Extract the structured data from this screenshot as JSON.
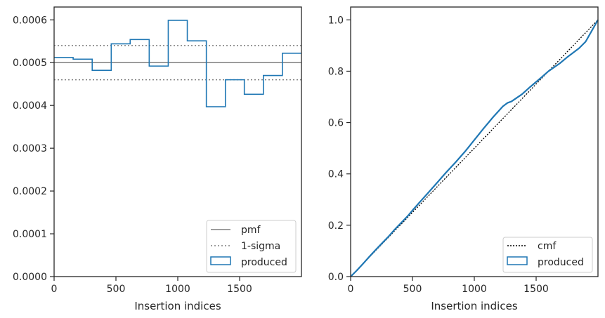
{
  "chart_data": [
    {
      "type": "line",
      "panel": "left",
      "xlabel": "Insertion indices",
      "ylabel": "",
      "xlim": [
        0,
        2000
      ],
      "ylim": [
        0,
        0.00063
      ],
      "x_ticks": [
        0,
        500,
        1000,
        1500
      ],
      "x_tick_labels": [
        "0",
        "500",
        "1000",
        "1500"
      ],
      "y_ticks": [
        0,
        0.0001,
        0.0002,
        0.0003,
        0.0004,
        0.0005,
        0.0006
      ],
      "y_tick_labels": [
        "0.0000",
        "0.0001",
        "0.0002",
        "0.0003",
        "0.0004",
        "0.0005",
        "0.0006"
      ],
      "grid": false,
      "legend_placement": "lower-right",
      "legend": [
        "pmf",
        "1-sigma",
        "produced"
      ],
      "pmf": {
        "name": "pmf",
        "value": 0.0005,
        "color": "#7f7f7f",
        "style": "solid"
      },
      "sigma": {
        "name": "1-sigma",
        "values": [
          0.00046,
          0.00054
        ],
        "color": "#7f7f7f",
        "style": "dotted"
      },
      "histogram": {
        "name": "produced",
        "color": "#1f77b4",
        "bin_edges": [
          0,
          154,
          308,
          462,
          615,
          769,
          923,
          1077,
          1231,
          1385,
          1538,
          1692,
          1846,
          2000
        ],
        "values": [
          0.000512,
          0.000508,
          0.000482,
          0.000544,
          0.000554,
          0.000492,
          0.000599,
          0.000551,
          0.000397,
          0.00046,
          0.000426,
          0.00047,
          0.000522
        ]
      }
    },
    {
      "type": "line",
      "panel": "right",
      "xlabel": "Insertion indices",
      "ylabel": "",
      "xlim": [
        0,
        2000
      ],
      "ylim": [
        0,
        1.05
      ],
      "x_ticks": [
        0,
        500,
        1000,
        1500
      ],
      "x_tick_labels": [
        "0",
        "500",
        "1000",
        "1500"
      ],
      "y_ticks": [
        0,
        0.2,
        0.4,
        0.6,
        0.8,
        1.0
      ],
      "y_tick_labels": [
        "0.0",
        "0.2",
        "0.4",
        "0.6",
        "0.8",
        "1.0"
      ],
      "grid": false,
      "legend_placement": "lower-right",
      "legend": [
        "cmf",
        "produced"
      ],
      "cmf": {
        "name": "cmf",
        "x": [
          0,
          2000
        ],
        "y": [
          0,
          1.0
        ],
        "color": "#000000",
        "style": "dotted"
      },
      "produced": {
        "name": "produced",
        "color": "#1f77b4",
        "x": [
          0,
          50,
          100,
          154,
          200,
          250,
          308,
          350,
          400,
          462,
          500,
          550,
          615,
          700,
          769,
          850,
          923,
          1000,
          1077,
          1150,
          1231,
          1270,
          1300,
          1385,
          1450,
          1538,
          1600,
          1692,
          1750,
          1846,
          1900,
          2000
        ],
        "y": [
          0,
          0.024,
          0.05,
          0.079,
          0.103,
          0.128,
          0.157,
          0.18,
          0.205,
          0.236,
          0.258,
          0.285,
          0.32,
          0.366,
          0.404,
          0.446,
          0.486,
          0.532,
          0.578,
          0.62,
          0.663,
          0.677,
          0.682,
          0.71,
          0.738,
          0.774,
          0.8,
          0.831,
          0.854,
          0.889,
          0.915,
          1.0
        ]
      }
    }
  ]
}
